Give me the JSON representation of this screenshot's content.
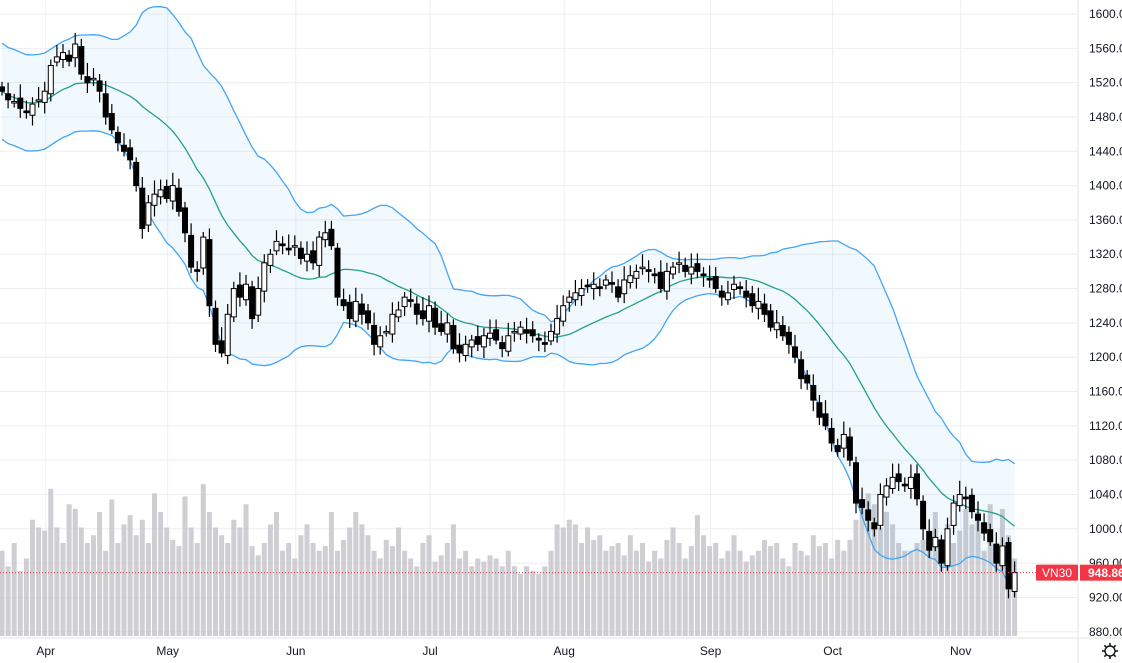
{
  "chart_data": {
    "type": "candlestick",
    "symbol": "VN30",
    "last_price": "948.86",
    "y_ticks": [
      "1600.00",
      "1560.00",
      "1520.00",
      "1480.00",
      "1440.00",
      "1400.00",
      "1360.00",
      "1320.00",
      "1280.00",
      "1240.00",
      "1200.00",
      "1160.00",
      "1120.00",
      "1080.00",
      "1040.00",
      "1000.00",
      "960.00",
      "920.00",
      "880.00"
    ],
    "ylim": [
      880,
      1600
    ],
    "months": [
      {
        "label": "Apr",
        "index": 7
      },
      {
        "label": "May",
        "index": 27
      },
      {
        "label": "Jun",
        "index": 48
      },
      {
        "label": "Jul",
        "index": 70
      },
      {
        "label": "Aug",
        "index": 92
      },
      {
        "label": "Sep",
        "index": 116
      },
      {
        "label": "Oct",
        "index": 136
      },
      {
        "label": "Nov",
        "index": 157
      }
    ],
    "indicator": "Bollinger Bands (20, 2)",
    "closes": [
      1510,
      1500,
      1498,
      1490,
      1485,
      1495,
      1500,
      1510,
      1540,
      1550,
      1555,
      1545,
      1565,
      1530,
      1520,
      1525,
      1510,
      1480,
      1465,
      1450,
      1440,
      1430,
      1400,
      1350,
      1380,
      1390,
      1395,
      1385,
      1400,
      1370,
      1345,
      1305,
      1300,
      1340,
      1260,
      1215,
      1205,
      1250,
      1280,
      1270,
      1285,
      1245,
      1280,
      1310,
      1320,
      1335,
      1330,
      1325,
      1330,
      1315,
      1320,
      1310,
      1340,
      1345,
      1330,
      1270,
      1260,
      1245,
      1265,
      1250,
      1240,
      1215,
      1225,
      1230,
      1250,
      1255,
      1270,
      1265,
      1250,
      1245,
      1260,
      1235,
      1230,
      1240,
      1210,
      1205,
      1215,
      1220,
      1215,
      1225,
      1228,
      1220,
      1210,
      1225,
      1230,
      1235,
      1228,
      1225,
      1220,
      1215,
      1230,
      1245,
      1260,
      1270,
      1275,
      1280,
      1283,
      1285,
      1280,
      1290,
      1285,
      1270,
      1290,
      1295,
      1300,
      1305,
      1300,
      1295,
      1280,
      1300,
      1305,
      1310,
      1300,
      1305,
      1300,
      1295,
      1290,
      1280,
      1270,
      1275,
      1285,
      1280,
      1270,
      1260,
      1265,
      1250,
      1235,
      1240,
      1225,
      1215,
      1200,
      1175,
      1170,
      1150,
      1130,
      1120,
      1100,
      1090,
      1110,
      1080,
      1030,
      1025,
      1010,
      1000,
      1040,
      1050,
      1060,
      1055,
      1050,
      1060,
      1035,
      1000,
      975,
      990,
      960,
      1000,
      1030,
      1040,
      1035,
      1020,
      1010,
      995,
      985,
      960,
      980,
      930,
      949
    ],
    "volumes": [
      55,
      45,
      60,
      42,
      50,
      75,
      70,
      68,
      95,
      70,
      60,
      85,
      82,
      70,
      60,
      65,
      80,
      55,
      88,
      60,
      72,
      78,
      65,
      75,
      60,
      92,
      80,
      70,
      62,
      58,
      90,
      70,
      60,
      98,
      80,
      70,
      65,
      60,
      75,
      70,
      85,
      58,
      52,
      60,
      72,
      80,
      55,
      60,
      50,
      65,
      72,
      60,
      55,
      58,
      80,
      55,
      62,
      70,
      80,
      72,
      65,
      55,
      50,
      62,
      58,
      70,
      55,
      50,
      45,
      60,
      65,
      48,
      52,
      60,
      72,
      50,
      55,
      45,
      50,
      48,
      52,
      50,
      45,
      55,
      45,
      40,
      45,
      42,
      40,
      45,
      55,
      72,
      70,
      75,
      72,
      60,
      70,
      62,
      65,
      55,
      58,
      60,
      52,
      65,
      55,
      60,
      48,
      55,
      50,
      62,
      70,
      60,
      50,
      58,
      78,
      65,
      58,
      60,
      50,
      55,
      65,
      55,
      48,
      52,
      55,
      62,
      58,
      60,
      50,
      45,
      60,
      55,
      52,
      65,
      58,
      60,
      50,
      62,
      55,
      62,
      75,
      88,
      92,
      85,
      70,
      80,
      72,
      60,
      55,
      55,
      60,
      62,
      55,
      80,
      50,
      72,
      60,
      68,
      82,
      72,
      80,
      55,
      85,
      60,
      82,
      65,
      50
    ]
  }
}
